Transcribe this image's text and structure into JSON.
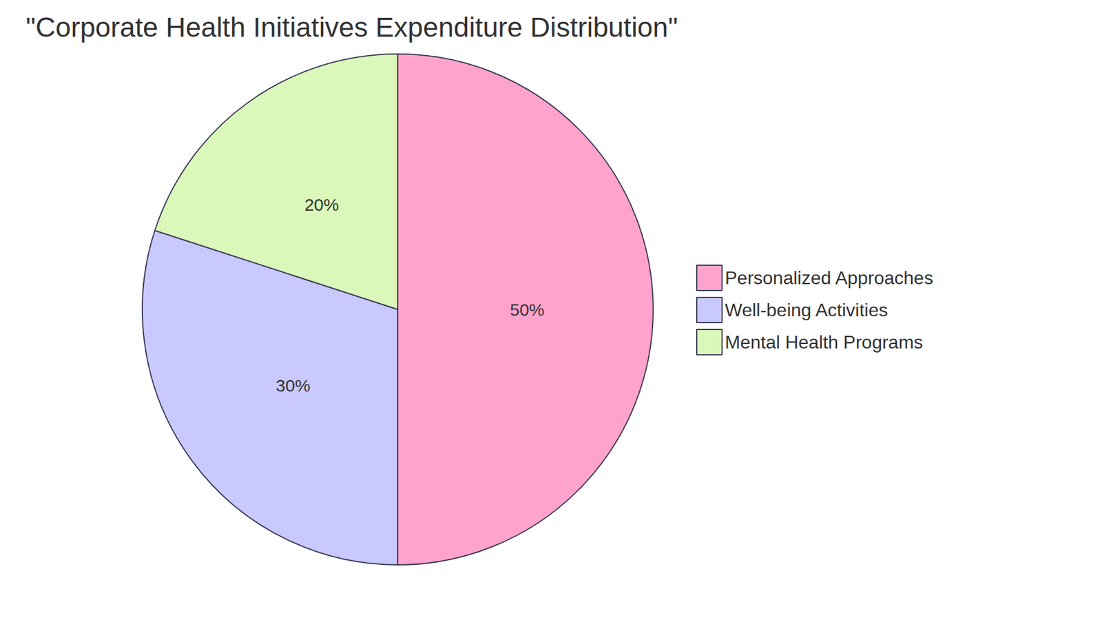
{
  "chart_data": {
    "type": "pie",
    "title": "\"Corporate Health Initiatives Expenditure Distribution\"",
    "categories": [
      "Personalized Approaches",
      "Well-being Activities",
      "Mental Health Programs"
    ],
    "values": [
      50,
      30,
      20
    ],
    "value_labels": [
      "50%",
      "30%",
      "20%"
    ],
    "colors": [
      "#ffa3cc",
      "#c9c9ff",
      "#daf8ba"
    ],
    "data_labels": true,
    "legend": "right"
  }
}
